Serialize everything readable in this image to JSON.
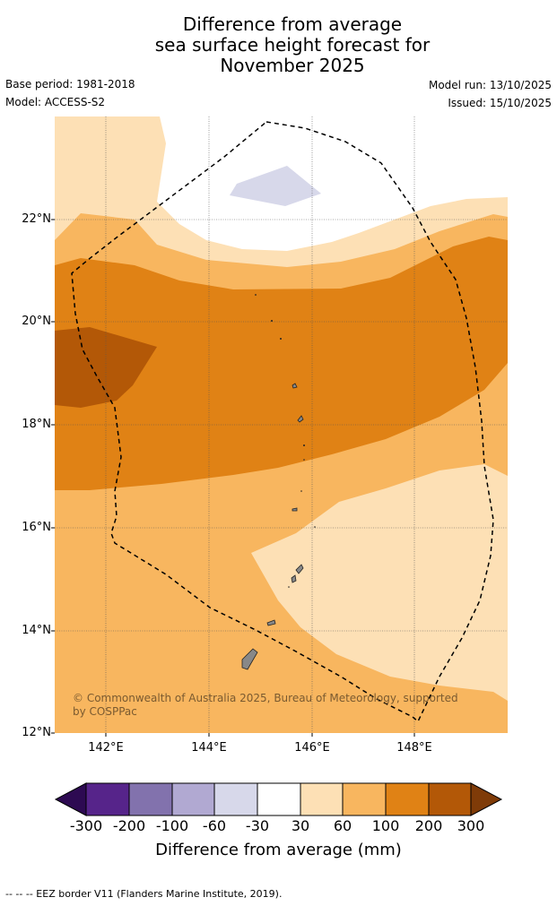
{
  "title": {
    "line1": "Difference from average",
    "line2": "sea surface height forecast for",
    "line3": "November 2025"
  },
  "meta": {
    "base_period": "Base period: 1981-2018",
    "model": "Model: ACCESS-S2",
    "model_run": "Model run: 13/10/2025",
    "issued": "Issued: 15/10/2025"
  },
  "map": {
    "lat_labels": [
      "22°N",
      "20°N",
      "18°N",
      "16°N",
      "14°N",
      "12°N"
    ],
    "lon_labels": [
      "142°E",
      "144°E",
      "146°E",
      "148°E"
    ],
    "copyright": "© Commonwealth of Australia 2025, Bureau of Meteorology, supported by COSPPac"
  },
  "colorbar": {
    "ticks": [
      "-300",
      "-200",
      "-100",
      "-60",
      "-30",
      "30",
      "60",
      "100",
      "200",
      "300"
    ],
    "colors": [
      "#2d0a52",
      "#56248a",
      "#8272ad",
      "#b1a9d2",
      "#d7d8ea",
      "#ffffff",
      "#fde0b5",
      "#f8b65f",
      "#e08215",
      "#b35807",
      "#7f3b08"
    ],
    "label": "Difference from average (mm)"
  },
  "footer": "--  --  -- EEZ border V11 (Flanders Marine Institute, 2019)."
}
